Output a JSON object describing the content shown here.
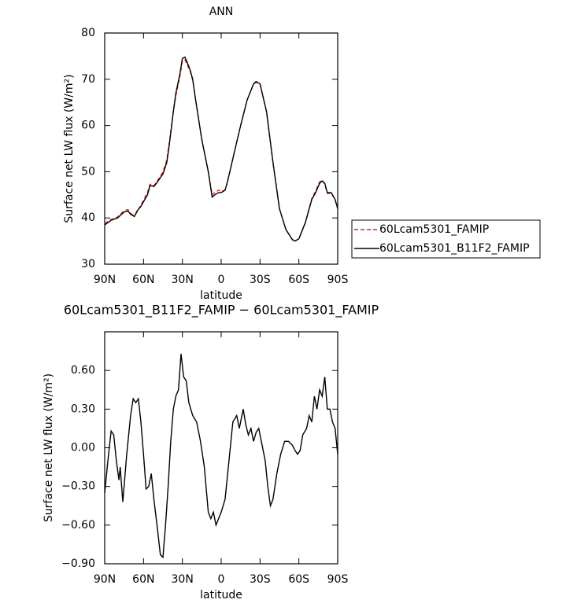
{
  "chart_data": [
    {
      "type": "line",
      "title": "ANN",
      "xlabel": "latitude",
      "ylabel": "Surface net LW flux (W/m²)",
      "x": [
        90,
        85,
        80,
        75,
        72,
        70,
        67,
        65,
        62,
        60,
        57,
        55,
        52,
        50,
        45,
        42,
        40,
        37,
        35,
        32,
        30,
        28,
        26,
        24,
        22,
        20,
        15,
        10,
        7,
        5,
        2,
        0,
        -3,
        -5,
        -10,
        -15,
        -20,
        -25,
        -27,
        -30,
        -35,
        -40,
        -45,
        -50,
        -55,
        -57,
        -60,
        -65,
        -70,
        -73,
        -76,
        -78,
        -80,
        -82,
        -85,
        -88,
        -90
      ],
      "series": [
        {
          "name": "60Lcam5301_FAMIP",
          "color": "#e8221c",
          "dash": true,
          "values": [
            38.8,
            39.7,
            40.2,
            41.6,
            41.8,
            41,
            40.5,
            41.3,
            42.8,
            43.8,
            45.5,
            47.3,
            47,
            47.7,
            50,
            52.5,
            56.5,
            63,
            66.5,
            70.5,
            74,
            74.2,
            73,
            71.8,
            69.8,
            66,
            57,
            50,
            45,
            45.5,
            46,
            45.8,
            46,
            48,
            54,
            60,
            65.5,
            69,
            69.3,
            69,
            63,
            52,
            42,
            37.5,
            35.3,
            35,
            35.5,
            39,
            44.2,
            45.8,
            47.8,
            48.2,
            47.3,
            45.3,
            45.3,
            44,
            42
          ]
        },
        {
          "name": "60Lcam5301_B11F2_FAMIP",
          "color": "#000000",
          "dash": false,
          "values": [
            38.5,
            39.5,
            40,
            41.3,
            41.5,
            40.8,
            40.3,
            41.5,
            42.5,
            43.5,
            45,
            47,
            46.8,
            47.5,
            49.5,
            52,
            56,
            63,
            67,
            71,
            74.5,
            74.8,
            73.5,
            72,
            70,
            66,
            57,
            50,
            44.5,
            45,
            45.5,
            45.5,
            46,
            48,
            54,
            60,
            65.5,
            69,
            69.5,
            69,
            63,
            52,
            42,
            37.5,
            35.3,
            35,
            35.5,
            39,
            44,
            45.5,
            47.5,
            48,
            47.5,
            45.5,
            45.5,
            44,
            42
          ]
        }
      ],
      "xlim": [
        90,
        -90
      ],
      "xticks": [
        {
          "value": 90,
          "label": "90N"
        },
        {
          "value": 60,
          "label": "60N"
        },
        {
          "value": 30,
          "label": "30N"
        },
        0,
        {
          "value": -30,
          "label": "30S"
        },
        {
          "value": -60,
          "label": "60S"
        },
        {
          "value": -90,
          "label": "90S"
        }
      ],
      "ylim": [
        30,
        80
      ],
      "yticks": [
        30,
        40,
        50,
        60,
        70,
        80
      ],
      "legend": "outside-right"
    },
    {
      "type": "line",
      "title": "60Lcam5301_B11F2_FAMIP − 60Lcam5301_FAMIP",
      "xlabel": "latitude",
      "ylabel": "Surface net LW flux (W/m²)",
      "x": [
        90,
        87,
        85,
        83,
        81,
        79,
        78,
        76,
        73,
        70,
        68,
        66,
        64,
        62,
        60,
        58,
        56,
        54,
        52,
        49,
        47,
        45,
        43,
        41,
        39,
        37,
        35,
        33,
        31,
        29,
        27,
        25,
        22,
        19,
        16,
        13,
        10,
        8,
        6,
        4,
        2,
        0,
        -3,
        -6,
        -9,
        -12,
        -14,
        -17,
        -19,
        -21,
        -23,
        -25,
        -27,
        -29,
        -31,
        -34,
        -36,
        -38,
        -40,
        -43,
        -46,
        -49,
        -52,
        -55,
        -57,
        -59,
        -61,
        -63,
        -66,
        -68,
        -70,
        -72,
        -74,
        -76,
        -78,
        -80,
        -82,
        -84,
        -86,
        -88,
        -90
      ],
      "values": [
        -0.35,
        -0.05,
        0.13,
        0.1,
        -0.1,
        -0.25,
        -0.15,
        -0.42,
        -0.05,
        0.25,
        0.38,
        0.35,
        0.38,
        0.2,
        -0.05,
        -0.32,
        -0.3,
        -0.2,
        -0.4,
        -0.65,
        -0.83,
        -0.85,
        -0.6,
        -0.3,
        0.05,
        0.3,
        0.4,
        0.45,
        0.73,
        0.55,
        0.52,
        0.35,
        0.25,
        0.2,
        0.05,
        -0.15,
        -0.5,
        -0.55,
        -0.5,
        -0.6,
        -0.55,
        -0.5,
        -0.4,
        -0.1,
        0.2,
        0.25,
        0.15,
        0.3,
        0.18,
        0.1,
        0.15,
        0.05,
        0.12,
        0.15,
        0.05,
        -0.1,
        -0.3,
        -0.45,
        -0.4,
        -0.2,
        -0.05,
        0.05,
        0.05,
        0.02,
        -0.02,
        -0.05,
        -0.02,
        0.1,
        0.15,
        0.25,
        0.2,
        0.4,
        0.3,
        0.45,
        0.4,
        0.55,
        0.3,
        0.3,
        0.2,
        0.15,
        -0.05
      ],
      "color": "#000000",
      "xlim": [
        90,
        -90
      ],
      "xticks": [
        {
          "value": 90,
          "label": "90N"
        },
        {
          "value": 60,
          "label": "60N"
        },
        {
          "value": 30,
          "label": "30N"
        },
        0,
        {
          "value": -30,
          "label": "30S"
        },
        {
          "value": -60,
          "label": "60S"
        },
        {
          "value": -90,
          "label": "90S"
        }
      ],
      "ylim": [
        -0.9,
        0.9
      ],
      "yticks": [
        {
          "value": -0.9,
          "label": "−0.90"
        },
        {
          "value": -0.6,
          "label": "−0.60"
        },
        {
          "value": -0.3,
          "label": "−0.30"
        },
        {
          "value": 0,
          "label": "0.00"
        },
        {
          "value": 0.3,
          "label": "0.30"
        },
        {
          "value": 0.6,
          "label": "0.60"
        }
      ]
    }
  ]
}
